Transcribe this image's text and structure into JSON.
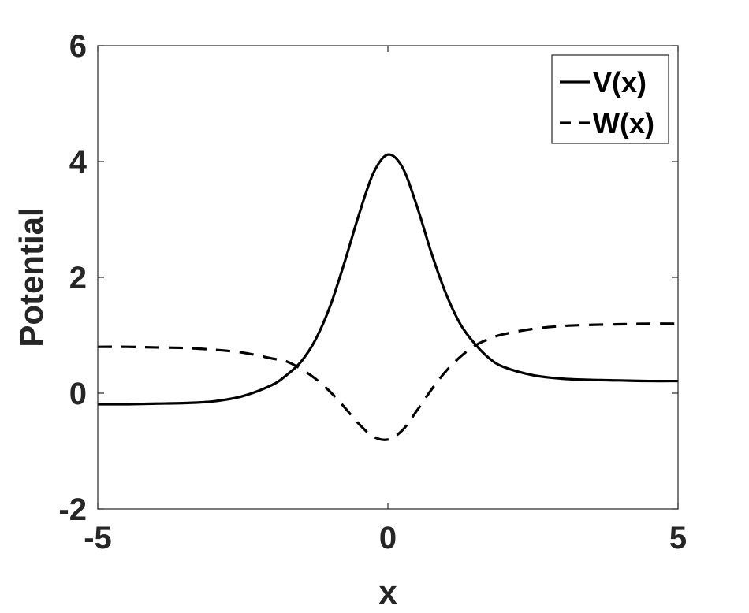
{
  "chart_data": {
    "type": "line",
    "title": "",
    "xlabel": "x",
    "ylabel": "Potential",
    "xlim": [
      -5,
      5
    ],
    "ylim": [
      -2,
      6
    ],
    "xticks": [
      -5,
      0,
      5
    ],
    "yticks": [
      -2,
      0,
      2,
      4,
      6
    ],
    "xtick_labels": [
      "-5",
      "0",
      "5"
    ],
    "ytick_labels": [
      "-2",
      "0",
      "2",
      "4",
      "6"
    ],
    "grid": false,
    "legend_position": "top-right",
    "x": [
      -5,
      -4.5,
      -4,
      -3.5,
      -3,
      -2.5,
      -2,
      -1.75,
      -1.5,
      -1.25,
      -1,
      -0.75,
      -0.5,
      -0.25,
      0,
      0.25,
      0.5,
      0.75,
      1,
      1.25,
      1.5,
      1.75,
      2,
      2.5,
      3,
      3.5,
      4,
      4.5,
      5
    ],
    "series": [
      {
        "name": "V(x)",
        "style": "solid",
        "color": "#000000",
        "values": [
          -0.19,
          -0.19,
          -0.18,
          -0.17,
          -0.14,
          -0.05,
          0.14,
          0.31,
          0.54,
          0.92,
          1.49,
          2.25,
          3.08,
          3.8,
          4.12,
          3.9,
          3.23,
          2.42,
          1.72,
          1.19,
          0.85,
          0.6,
          0.45,
          0.31,
          0.25,
          0.23,
          0.22,
          0.21,
          0.21
        ]
      },
      {
        "name": "W(x)",
        "style": "dashed",
        "color": "#000000",
        "values": [
          0.8,
          0.8,
          0.79,
          0.78,
          0.75,
          0.7,
          0.6,
          0.55,
          0.42,
          0.25,
          0.03,
          -0.24,
          -0.53,
          -0.75,
          -0.8,
          -0.64,
          -0.3,
          0.06,
          0.38,
          0.63,
          0.82,
          0.94,
          1.02,
          1.11,
          1.16,
          1.18,
          1.19,
          1.2,
          1.2
        ]
      }
    ]
  }
}
